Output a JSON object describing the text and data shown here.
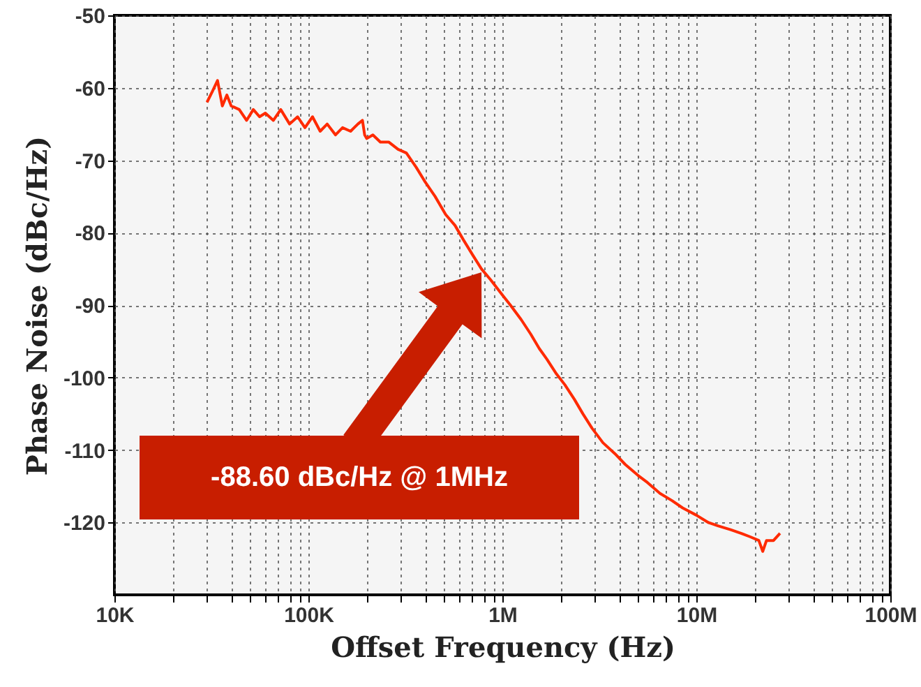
{
  "chart_data": {
    "type": "line",
    "xlabel": "Offset Frequency (Hz)",
    "ylabel": "Phase Noise (dBc/Hz)",
    "log": "x",
    "grid": true,
    "xlim": [
      10000,
      100000000
    ],
    "xticks": [
      {
        "value": 10000,
        "label": "10K"
      },
      {
        "value": 20000,
        "label": null
      },
      {
        "value": 30000,
        "label": null
      },
      {
        "value": 40000,
        "label": null
      },
      {
        "value": 50000,
        "label": null
      },
      {
        "value": 60000,
        "label": null
      },
      {
        "value": 70000,
        "label": null
      },
      {
        "value": 80000,
        "label": null
      },
      {
        "value": 90000,
        "label": null
      },
      {
        "value": 100000,
        "label": "100K"
      },
      {
        "value": 200000,
        "label": null
      },
      {
        "value": 300000,
        "label": null
      },
      {
        "value": 400000,
        "label": null
      },
      {
        "value": 500000,
        "label": null
      },
      {
        "value": 600000,
        "label": null
      },
      {
        "value": 700000,
        "label": null
      },
      {
        "value": 800000,
        "label": null
      },
      {
        "value": 900000,
        "label": null
      },
      {
        "value": 1000000,
        "label": "1M"
      },
      {
        "value": 2000000,
        "label": null
      },
      {
        "value": 3000000,
        "label": null
      },
      {
        "value": 4000000,
        "label": null
      },
      {
        "value": 5000000,
        "label": null
      },
      {
        "value": 6000000,
        "label": null
      },
      {
        "value": 7000000,
        "label": null
      },
      {
        "value": 8000000,
        "label": null
      },
      {
        "value": 9000000,
        "label": null
      },
      {
        "value": 10000000,
        "label": "10M"
      },
      {
        "value": 20000000,
        "label": null
      },
      {
        "value": 30000000,
        "label": null
      },
      {
        "value": 40000000,
        "label": null
      },
      {
        "value": 50000000,
        "label": null
      },
      {
        "value": 60000000,
        "label": null
      },
      {
        "value": 70000000,
        "label": null
      },
      {
        "value": 80000000,
        "label": null
      },
      {
        "value": 90000000,
        "label": null
      },
      {
        "value": 100000000,
        "label": "100M"
      }
    ],
    "ylim": [
      -130,
      -50
    ],
    "yticks": [
      -50,
      -60,
      -70,
      -80,
      -90,
      -100,
      -110,
      -120
    ],
    "series": [
      {
        "color": "#ff2a00",
        "x": [
          30000,
          32000,
          34000,
          36000,
          38000,
          40000,
          44000,
          48000,
          52000,
          56000,
          60000,
          66000,
          72000,
          80000,
          88000,
          96000,
          105000,
          115000,
          125000,
          138000,
          150000,
          165000,
          180000,
          190000,
          195000,
          200000,
          215000,
          235000,
          260000,
          290000,
          320000,
          360000,
          400000,
          450000,
          510000,
          570000,
          630000,
          700000,
          780000,
          870000,
          1000000,
          1100000,
          1250000,
          1400000,
          1550000,
          1700000,
          1900000,
          2100000,
          2350000,
          2600000,
          2900000,
          3300000,
          3800000,
          4300000,
          5000000,
          5600000,
          6500000,
          7500000,
          8500000,
          10000000,
          11500000,
          13000000,
          15000000,
          17000000,
          19000000,
          21000000,
          22000000,
          23000000,
          25000000,
          27000000
        ],
        "values": [
          -62,
          -60.5,
          -59,
          -62.5,
          -61,
          -62.5,
          -63,
          -64.5,
          -63,
          -64,
          -63.5,
          -64.5,
          -63,
          -65,
          -64,
          -65.5,
          -64,
          -66,
          -65,
          -66.5,
          -65.5,
          -66,
          -65,
          -64.5,
          -66.5,
          -67,
          -66.5,
          -67.5,
          -67.5,
          -68.5,
          -69,
          -71,
          -73,
          -75,
          -77.5,
          -79,
          -81,
          -83,
          -85,
          -86.5,
          -88.6,
          -90,
          -92,
          -94,
          -96,
          -97.5,
          -99.5,
          -101,
          -103,
          -105,
          -107,
          -109,
          -110.5,
          -112,
          -113.5,
          -114.5,
          -116,
          -117,
          -118,
          -119,
          -120,
          -120.5,
          -121,
          -121.5,
          -122,
          -122.5,
          -124,
          -122.5,
          -122.5,
          -121.5
        ]
      }
    ],
    "annotations": [
      "-88.60 dBc/Hz @ 1MHz"
    ]
  }
}
